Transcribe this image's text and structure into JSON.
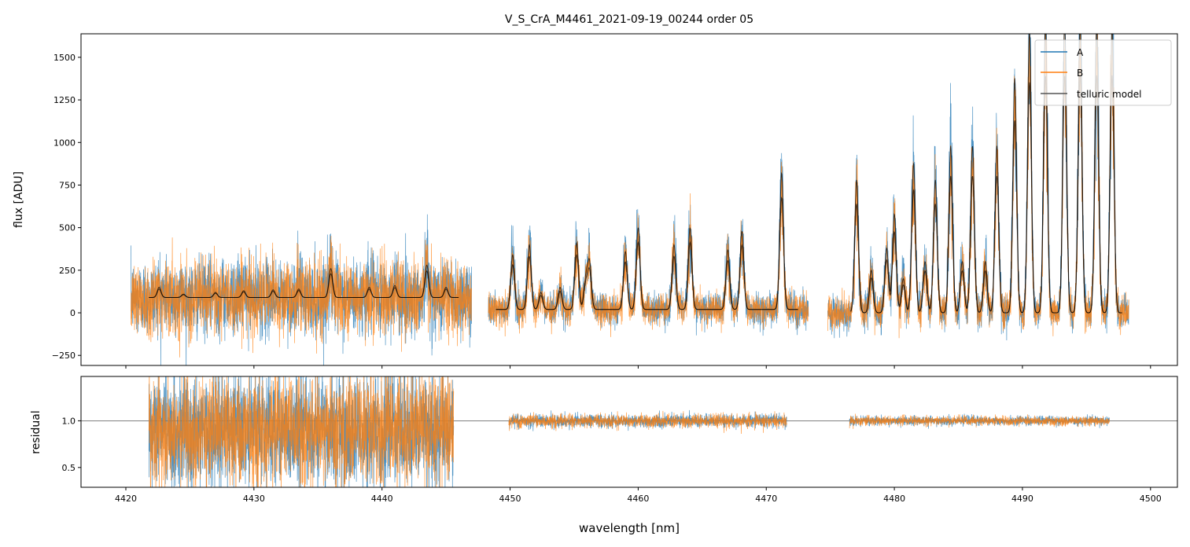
{
  "chart_data": [
    {
      "type": "line",
      "title": "V_S_CrA_M4461_2021-09-19_00244  order 05",
      "xlabel": "",
      "ylabel": "flux [ADU]",
      "xlim": [
        4416.5,
        4502.1
      ],
      "ylim": [
        -309,
        1638
      ],
      "xticks": [
        4420,
        4430,
        4440,
        4450,
        4460,
        4470,
        4480,
        4490,
        4500
      ],
      "yticks": [
        -250,
        0,
        250,
        500,
        750,
        1000,
        1250,
        1500
      ],
      "legend": {
        "position": "top-right",
        "entries": [
          "A",
          "B",
          "telluric model"
        ]
      },
      "colors": {
        "A": "#1f77b4",
        "B": "#ff7f0e",
        "telluric model": "#000000"
      },
      "segments": [
        {
          "data_range": [
            4420.4,
            4447.0
          ],
          "model_range": [
            4421.8,
            4446.0
          ],
          "baseline": 90,
          "noise": 110,
          "lines": [
            [
              4422.6,
              60
            ],
            [
              4424.5,
              20
            ],
            [
              4427.0,
              30
            ],
            [
              4429.2,
              40
            ],
            [
              4431.5,
              45
            ],
            [
              4433.5,
              50
            ],
            [
              4436.0,
              170
            ],
            [
              4439.0,
              60
            ],
            [
              4441.0,
              70
            ],
            [
              4443.5,
              190
            ],
            [
              4445.0,
              60
            ]
          ]
        },
        {
          "data_range": [
            4448.3,
            4473.3
          ],
          "model_range": [
            4448.9,
            4472.5
          ],
          "baseline": 20,
          "noise": 45,
          "lines": [
            [
              4450.2,
              320
            ],
            [
              4451.5,
              380
            ],
            [
              4452.4,
              100
            ],
            [
              4453.9,
              130
            ],
            [
              4455.2,
              390
            ],
            [
              4455.9,
              170
            ],
            [
              4456.2,
              270
            ],
            [
              4459.0,
              340
            ],
            [
              4460.0,
              480
            ],
            [
              4462.8,
              380
            ],
            [
              4464.05,
              480
            ],
            [
              4467.0,
              350
            ],
            [
              4468.1,
              460
            ],
            [
              4471.2,
              800
            ]
          ]
        },
        {
          "data_range": [
            4474.8,
            4498.3
          ],
          "model_range": [
            4476.6,
            4497.8
          ],
          "baseline": 0,
          "noise": 50,
          "lines": [
            [
              4477.05,
              780
            ],
            [
              4478.2,
              250
            ],
            [
              4479.4,
              380
            ],
            [
              4480.0,
              580
            ],
            [
              4480.7,
              200
            ],
            [
              4481.5,
              880
            ],
            [
              4482.4,
              300
            ],
            [
              4483.2,
              780
            ],
            [
              4484.4,
              980
            ],
            [
              4485.3,
              300
            ],
            [
              4486.1,
              980
            ],
            [
              4487.1,
              300
            ],
            [
              4488.0,
              980
            ],
            [
              4489.4,
              1380
            ],
            [
              4490.55,
              1650
            ],
            [
              4491.8,
              1700
            ],
            [
              4493.3,
              1700
            ],
            [
              4494.5,
              1700
            ],
            [
              4495.8,
              1700
            ],
            [
              4497.0,
              1700
            ]
          ]
        }
      ]
    },
    {
      "type": "line",
      "title": "",
      "xlabel": "wavelength [nm]",
      "ylabel": "residual",
      "xlim": [
        4416.5,
        4502.1
      ],
      "ylim": [
        0.288,
        1.475
      ],
      "xticks": [
        4420,
        4430,
        4440,
        4450,
        4460,
        4470,
        4480,
        4490,
        4500
      ],
      "yticks": [
        0.5,
        1.0
      ],
      "reference_line": 1.0,
      "segments": [
        {
          "range": [
            4421.8,
            4445.6
          ],
          "center": 0.9,
          "noise": 0.3
        },
        {
          "range": [
            4449.9,
            4471.6
          ],
          "center": 1.0,
          "noise": 0.035
        },
        {
          "range": [
            4476.5,
            4496.8
          ],
          "center": 1.0,
          "noise": 0.025
        }
      ]
    }
  ]
}
